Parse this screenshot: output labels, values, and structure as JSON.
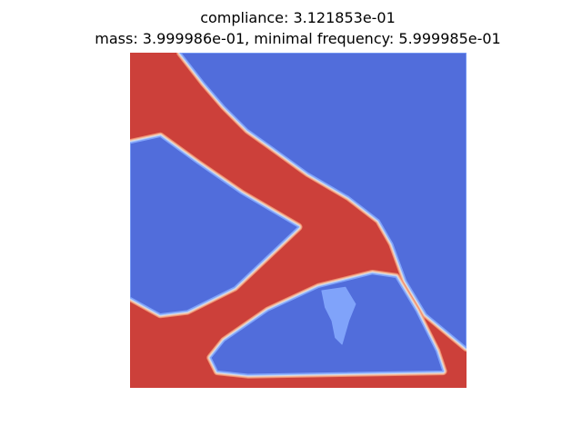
{
  "figure": {
    "title_lines": [
      "compliance: 3.121853e-01",
      "mass: 3.999986e-01, minimal frequency: 5.999985e-01"
    ]
  },
  "chart_data": {
    "type": "heatmap",
    "title": "compliance: 3.121853e-01\nmass: 3.999986e-01, minimal frequency: 5.999985e-01",
    "xlabel": "",
    "ylabel": "",
    "axes_visible": false,
    "grid": false,
    "legend": "none",
    "colormap": "coolwarm",
    "value_range": [
      0,
      1
    ],
    "colors": {
      "void": "#516ddb",
      "void_light": "#80a3fa",
      "edge_mid_blue": "#aac7fd",
      "edge_light": "#dddcdc",
      "edge_peach": "#f7b89c",
      "edge_orange": "#ec8d6e",
      "solid": "#cc403a"
    },
    "description_of_field": "Material density field (1 = solid, 0 = void) of an optimized structure, normalized domain [0,1]x[0,1] with y measured from the bottom",
    "void_regions": [
      {
        "name": "upper-right-void",
        "polygon": [
          [
            0.15,
            1.0
          ],
          [
            1.0,
            1.0
          ],
          [
            1.0,
            0.12
          ],
          [
            0.88,
            0.22
          ],
          [
            0.82,
            0.32
          ],
          [
            0.78,
            0.43
          ],
          [
            0.74,
            0.5
          ],
          [
            0.65,
            0.57
          ],
          [
            0.53,
            0.64
          ],
          [
            0.42,
            0.72
          ],
          [
            0.35,
            0.77
          ],
          [
            0.28,
            0.84
          ],
          [
            0.22,
            0.91
          ]
        ]
      },
      {
        "name": "left-void",
        "polygon": [
          [
            0.0,
            0.73
          ],
          [
            0.09,
            0.75
          ],
          [
            0.2,
            0.67
          ],
          [
            0.33,
            0.58
          ],
          [
            0.5,
            0.48
          ],
          [
            0.31,
            0.3
          ],
          [
            0.17,
            0.23
          ],
          [
            0.09,
            0.22
          ],
          [
            0.0,
            0.27
          ]
        ]
      },
      {
        "name": "lower-triangle-void",
        "polygon": [
          [
            0.24,
            0.09
          ],
          [
            0.28,
            0.14
          ],
          [
            0.41,
            0.23
          ],
          [
            0.56,
            0.3
          ],
          [
            0.72,
            0.34
          ],
          [
            0.79,
            0.33
          ],
          [
            0.85,
            0.23
          ],
          [
            0.91,
            0.11
          ],
          [
            0.93,
            0.05
          ],
          [
            0.35,
            0.04
          ],
          [
            0.26,
            0.05
          ]
        ]
      }
    ],
    "intermediate_regions": [
      {
        "name": "grey-density-patch",
        "polygon": [
          [
            0.57,
            0.29
          ],
          [
            0.64,
            0.3
          ],
          [
            0.67,
            0.25
          ],
          [
            0.65,
            0.2
          ],
          [
            0.63,
            0.13
          ],
          [
            0.61,
            0.15
          ],
          [
            0.6,
            0.2
          ],
          [
            0.58,
            0.24
          ]
        ]
      }
    ]
  }
}
